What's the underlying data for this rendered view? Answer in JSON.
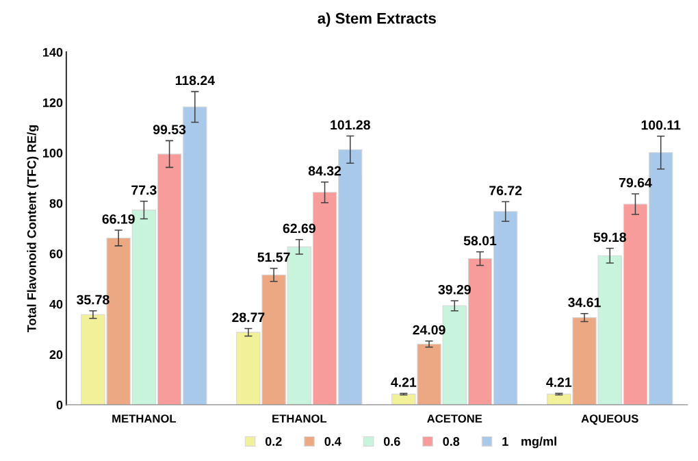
{
  "chart_data": {
    "type": "bar",
    "title": "a) Stem Extracts",
    "ylabel": "Total Flavonoid Content (TFC) RE/g",
    "legend_title": "mg/ml",
    "categories": [
      "METHANOL",
      "ETHANOL",
      "ACETONE",
      "AQUEOUS"
    ],
    "series": [
      {
        "name": "0.2",
        "color": "#f3f09a",
        "values": [
          35.78,
          28.77,
          4.21,
          4.21
        ],
        "errors": [
          1.5,
          1.5,
          0.3,
          0.3
        ]
      },
      {
        "name": "0.4",
        "color": "#eca882",
        "values": [
          66.19,
          51.57,
          24.09,
          34.61
        ],
        "errors": [
          3.1,
          2.6,
          1.2,
          1.6
        ]
      },
      {
        "name": "0.6",
        "color": "#c8f3dc",
        "values": [
          77.3,
          62.69,
          39.29,
          59.18
        ],
        "errors": [
          3.5,
          2.9,
          2.0,
          2.9
        ]
      },
      {
        "name": "0.8",
        "color": "#f79b9b",
        "values": [
          99.53,
          84.32,
          58.01,
          79.64
        ],
        "errors": [
          5.3,
          4.1,
          2.7,
          4.1
        ]
      },
      {
        "name": "1",
        "color": "#a9c9ea",
        "values": [
          118.24,
          101.28,
          76.72,
          100.11
        ],
        "errors": [
          6.1,
          5.4,
          3.9,
          6.5
        ]
      }
    ],
    "ylim": [
      0,
      140
    ],
    "yticks": [
      0,
      20,
      40,
      60,
      80,
      100,
      120,
      140
    ],
    "grid": false,
    "legend": "bottom",
    "data_labels": true
  }
}
